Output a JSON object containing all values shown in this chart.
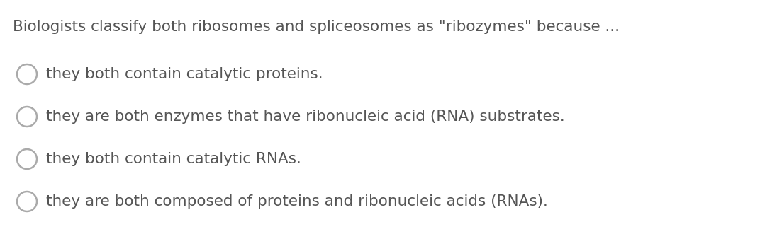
{
  "background_color": "#ffffff",
  "question": "Biologists classify both ribosomes and spliceosomes as \"ribozymes\" because ...",
  "question_fontsize": 15.5,
  "question_color": "#555555",
  "options": [
    "they both contain catalytic proteins.",
    "they are both enzymes that have ribonucleic acid (RNA) substrates.",
    "they both contain catalytic RNAs.",
    "they are both composed of proteins and ribonucleic acids (RNAs)."
  ],
  "option_fontsize": 15.5,
  "option_color": "#555555",
  "circle_edgecolor": "#aaaaaa",
  "circle_facecolor": "#ffffff",
  "circle_linewidth": 1.8,
  "fig_width": 10.96,
  "fig_height": 3.48,
  "dpi": 100
}
